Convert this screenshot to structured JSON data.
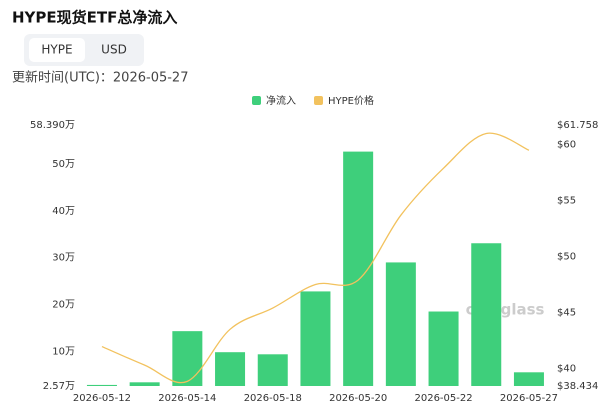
{
  "header": {
    "title": "HYPE现货ETF总净流入",
    "tabs": [
      "HYPE",
      "USD"
    ],
    "updated": "更新时间(UTC)：2026-05-27"
  },
  "watermark": "coinglass",
  "chart_data": {
    "type": "bar-line",
    "categories": [
      "2026-05-12",
      null,
      "2026-05-14",
      null,
      "2026-05-18",
      null,
      "2026-05-20",
      null,
      "2026-05-22",
      null,
      "2026-05-27"
    ],
    "series": [
      {
        "name": "净流入",
        "type": "bar",
        "color": "#3ecf7b",
        "values": [
          2.8,
          3.36,
          14.3,
          9.8,
          9.35,
          22.8,
          52.7,
          29.0,
          18.5,
          33.1,
          5.5
        ]
      },
      {
        "name": "HYPE价格",
        "type": "line",
        "axis": "y2",
        "color": "#f2c25e",
        "values": [
          41.96,
          40.3,
          38.85,
          43.5,
          45.4,
          47.5,
          47.9,
          53.7,
          57.9,
          61.0,
          59.5
        ]
      }
    ],
    "ylim": [
      2.57,
      58.39
    ],
    "yticks": [
      {
        "value": 2.57,
        "label": "2.57万"
      },
      {
        "value": 10,
        "label": "10万"
      },
      {
        "value": 20,
        "label": "20万"
      },
      {
        "value": 30,
        "label": "30万"
      },
      {
        "value": 40,
        "label": "40万"
      },
      {
        "value": 50,
        "label": "50万"
      },
      {
        "value": 58.39,
        "label": "58.390万"
      }
    ],
    "y2lim": [
      38.434,
      61.758
    ],
    "y2ticks": [
      {
        "value": 38.434,
        "label": "$38.434"
      },
      {
        "value": 40,
        "label": "$40"
      },
      {
        "value": 45,
        "label": "$45"
      },
      {
        "value": 50,
        "label": "$50"
      },
      {
        "value": 55,
        "label": "$55"
      },
      {
        "value": 60,
        "label": "$60"
      },
      {
        "value": 61.758,
        "label": "$61.758"
      }
    ],
    "grid": false,
    "legend": "top"
  }
}
